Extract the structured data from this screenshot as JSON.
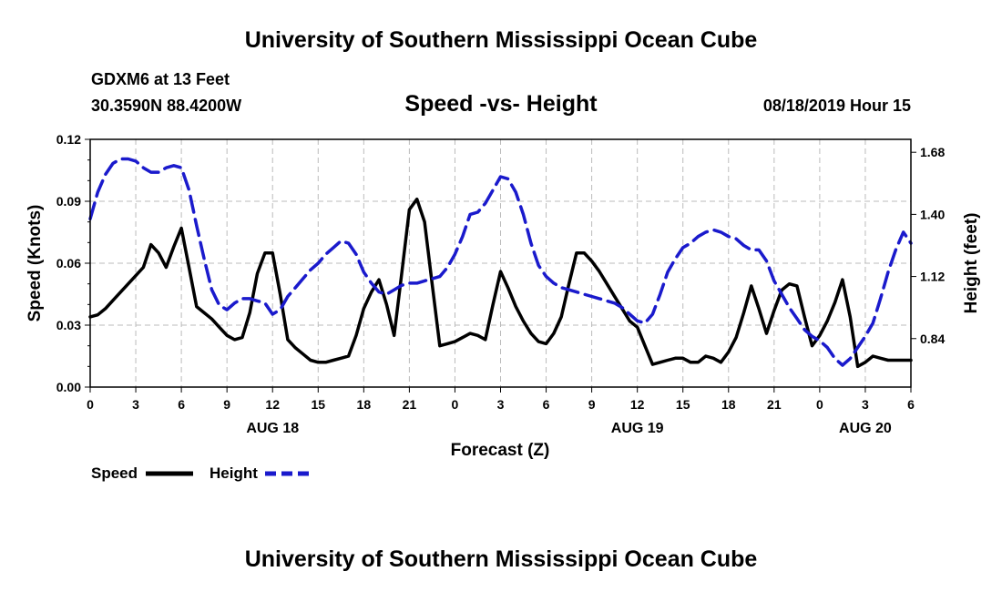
{
  "header": {
    "top_title": "University of Southern Mississippi Ocean Cube",
    "station": "GDXM6 at 13 Feet",
    "location": "30.3590N 88.4200W",
    "chart_title": "Speed -vs- Height",
    "datetime": "08/18/2019 Hour 15"
  },
  "footer": {
    "bottom_title": "University of Southern Mississippi Ocean Cube"
  },
  "legend": {
    "speed_label": "Speed",
    "height_label": "Height"
  },
  "colors": {
    "speed": "#000000",
    "height": "#1a1acc",
    "grid": "#bbbbbb"
  },
  "chart_data": {
    "type": "line",
    "title": "Speed -vs- Height",
    "xlabel": "Forecast (Z)",
    "ylabel_left": "Speed (Knots)",
    "ylabel_right": "Height (feet)",
    "x_range": [
      0,
      54
    ],
    "x_tick_values": [
      0,
      3,
      6,
      9,
      12,
      15,
      18,
      21,
      24,
      27,
      30,
      33,
      36,
      39,
      42,
      45,
      48,
      51,
      54
    ],
    "x_tick_labels": [
      "0",
      "3",
      "6",
      "9",
      "12",
      "15",
      "18",
      "21",
      "0",
      "3",
      "6",
      "9",
      "12",
      "15",
      "18",
      "21",
      "0",
      "3",
      "6"
    ],
    "date_labels": [
      {
        "x": 12,
        "text": "AUG 18"
      },
      {
        "x": 36,
        "text": "AUG 19"
      },
      {
        "x": 51,
        "text": "AUG 20"
      }
    ],
    "ylim_left": [
      0,
      0.12
    ],
    "y_left_ticks": [
      "0.00",
      "0.03",
      "0.06",
      "0.09",
      "0.12"
    ],
    "y_left_tick_values": [
      0,
      0.03,
      0.06,
      0.09,
      0.12
    ],
    "ylim_right": [
      0.6214,
      1.7383
    ],
    "y_right_ticks": [
      "0.84",
      "1.12",
      "1.40",
      "1.68"
    ],
    "y_right_tick_values": [
      0.84,
      1.12,
      1.4,
      1.68
    ],
    "grid": true,
    "series": [
      {
        "name": "Speed",
        "axis": "left",
        "style": "solid",
        "x": [
          0,
          0.5,
          1,
          1.5,
          2,
          2.5,
          3,
          3.5,
          4,
          4.5,
          5,
          5.5,
          6,
          6.5,
          7,
          7.5,
          8,
          8.5,
          9,
          9.5,
          10,
          10.5,
          11,
          11.5,
          12,
          12.5,
          13,
          13.5,
          14,
          14.5,
          15,
          15.5,
          16,
          16.5,
          17,
          17.5,
          18,
          18.5,
          19,
          19.5,
          20,
          20.5,
          21,
          21.5,
          22,
          22.5,
          23,
          23.5,
          24,
          24.5,
          25,
          25.5,
          26,
          26.5,
          27,
          27.5,
          28,
          28.5,
          29,
          29.5,
          30,
          30.5,
          31,
          31.5,
          32,
          32.5,
          33,
          33.5,
          34,
          34.5,
          35,
          35.5,
          36,
          36.5,
          37,
          37.5,
          38,
          38.5,
          39,
          39.5,
          40,
          40.5,
          41,
          41.5,
          42,
          42.5,
          43,
          43.5,
          44,
          44.5,
          45,
          45.5,
          46,
          46.5,
          47,
          47.5,
          48,
          48.5,
          49,
          49.5,
          50,
          50.5,
          51,
          51.5,
          52,
          52.5,
          53,
          53.5,
          54
        ],
        "values": [
          0.034,
          0.035,
          0.038,
          0.042,
          0.046,
          0.05,
          0.054,
          0.058,
          0.069,
          0.065,
          0.058,
          0.068,
          0.077,
          0.058,
          0.039,
          0.036,
          0.033,
          0.029,
          0.025,
          0.023,
          0.024,
          0.036,
          0.055,
          0.065,
          0.065,
          0.045,
          0.023,
          0.019,
          0.016,
          0.013,
          0.012,
          0.012,
          0.013,
          0.014,
          0.015,
          0.025,
          0.038,
          0.046,
          0.052,
          0.04,
          0.025,
          0.055,
          0.086,
          0.091,
          0.08,
          0.05,
          0.02,
          0.021,
          0.022,
          0.024,
          0.026,
          0.025,
          0.023,
          0.04,
          0.056,
          0.048,
          0.039,
          0.032,
          0.026,
          0.022,
          0.021,
          0.026,
          0.034,
          0.05,
          0.065,
          0.065,
          0.061,
          0.056,
          0.05,
          0.044,
          0.038,
          0.032,
          0.029,
          0.02,
          0.011,
          0.012,
          0.013,
          0.014,
          0.014,
          0.012,
          0.012,
          0.015,
          0.014,
          0.012,
          0.017,
          0.024,
          0.036,
          0.049,
          0.038,
          0.026,
          0.037,
          0.047,
          0.05,
          0.049,
          0.034,
          0.02,
          0.025,
          0.032,
          0.041,
          0.052,
          0.034,
          0.01,
          0.012,
          0.015,
          0.014,
          0.013,
          0.013,
          0.013,
          0.013
        ]
      },
      {
        "name": "Height",
        "axis": "right",
        "style": "dashed",
        "x": [
          0,
          0.5,
          1,
          1.5,
          2,
          2.5,
          3,
          3.5,
          4,
          4.5,
          5,
          5.5,
          6,
          6.5,
          7,
          7.5,
          8,
          8.5,
          9,
          9.5,
          10,
          10.5,
          11,
          11.5,
          12,
          12.5,
          13,
          13.5,
          14,
          14.5,
          15,
          15.5,
          16,
          16.5,
          17,
          17.5,
          18,
          18.5,
          19,
          19.5,
          20,
          20.5,
          21,
          21.5,
          22,
          22.5,
          23,
          23.5,
          24,
          24.5,
          25,
          25.5,
          26,
          26.5,
          27,
          27.5,
          28,
          28.5,
          29,
          29.5,
          30,
          30.5,
          31,
          31.5,
          32,
          32.5,
          33,
          33.5,
          34,
          34.5,
          35,
          35.5,
          36,
          36.5,
          37,
          37.5,
          38,
          38.5,
          39,
          39.5,
          40,
          40.5,
          41,
          41.5,
          42,
          42.5,
          43,
          43.5,
          44,
          44.5,
          45,
          45.5,
          46,
          46.5,
          47,
          47.5,
          48,
          48.5,
          49,
          49.5,
          50,
          50.5,
          51,
          51.5,
          52,
          52.5,
          53,
          53.5,
          54
        ],
        "values": [
          1.38,
          1.5,
          1.58,
          1.63,
          1.65,
          1.65,
          1.64,
          1.61,
          1.59,
          1.59,
          1.61,
          1.62,
          1.61,
          1.51,
          1.35,
          1.2,
          1.06,
          0.99,
          0.97,
          1.0,
          1.02,
          1.02,
          1.01,
          1.0,
          0.95,
          0.97,
          1.03,
          1.07,
          1.11,
          1.15,
          1.18,
          1.22,
          1.25,
          1.28,
          1.27,
          1.22,
          1.14,
          1.09,
          1.05,
          1.04,
          1.06,
          1.08,
          1.09,
          1.09,
          1.1,
          1.11,
          1.12,
          1.16,
          1.22,
          1.3,
          1.4,
          1.41,
          1.45,
          1.51,
          1.57,
          1.56,
          1.5,
          1.4,
          1.27,
          1.17,
          1.12,
          1.09,
          1.07,
          1.06,
          1.05,
          1.04,
          1.03,
          1.02,
          1.01,
          1.0,
          0.98,
          0.95,
          0.92,
          0.91,
          0.95,
          1.04,
          1.14,
          1.2,
          1.25,
          1.27,
          1.3,
          1.32,
          1.33,
          1.32,
          1.3,
          1.29,
          1.26,
          1.24,
          1.24,
          1.19,
          1.1,
          1.04,
          0.98,
          0.93,
          0.88,
          0.85,
          0.83,
          0.8,
          0.75,
          0.72,
          0.75,
          0.8,
          0.85,
          0.91,
          1.02,
          1.14,
          1.24,
          1.32,
          1.27
        ]
      }
    ]
  }
}
